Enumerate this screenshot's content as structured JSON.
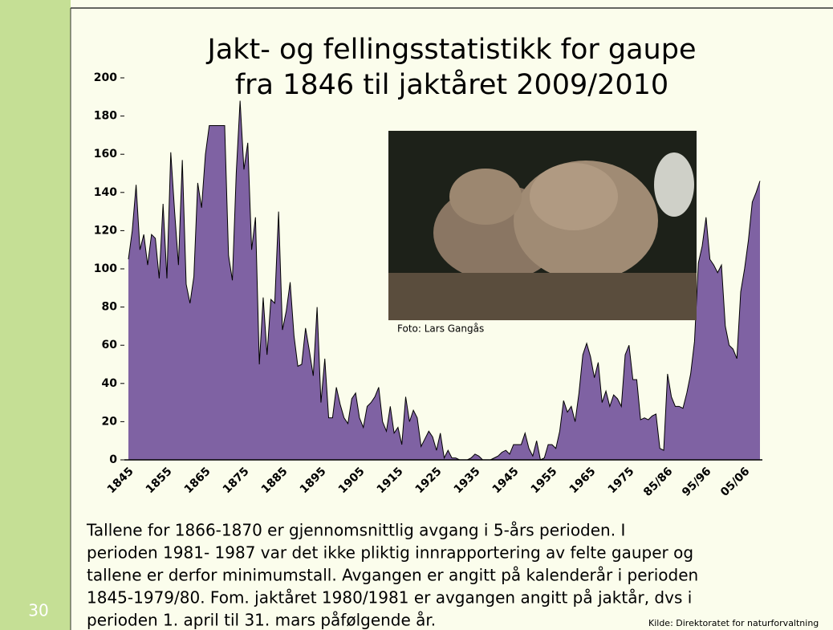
{
  "chart_data": {
    "type": "area",
    "title": [
      "Jakt- og fellingsstatistikk for gaupe",
      "fra 1846 til jaktåret 2009/2010"
    ],
    "categories": [
      "1845",
      null,
      null,
      null,
      null,
      null,
      null,
      null,
      null,
      null,
      "1855",
      null,
      null,
      null,
      null,
      null,
      null,
      null,
      null,
      null,
      "1865",
      null,
      null,
      null,
      null,
      null,
      null,
      null,
      null,
      null,
      "1875",
      null,
      null,
      null,
      null,
      null,
      null,
      null,
      null,
      null,
      "1885",
      null,
      null,
      null,
      null,
      null,
      null,
      null,
      null,
      null,
      "1895",
      null,
      null,
      null,
      null,
      null,
      null,
      null,
      null,
      null,
      "1905",
      null,
      null,
      null,
      null,
      null,
      null,
      null,
      null,
      null,
      "1915",
      null,
      null,
      null,
      null,
      null,
      null,
      null,
      null,
      null,
      "1925",
      null,
      null,
      null,
      null,
      null,
      null,
      null,
      null,
      null,
      "1935",
      null,
      null,
      null,
      null,
      null,
      null,
      null,
      null,
      null,
      "1945",
      null,
      null,
      null,
      null,
      null,
      null,
      null,
      null,
      null,
      "1955",
      null,
      null,
      null,
      null,
      null,
      null,
      null,
      null,
      null,
      "1965",
      null,
      null,
      null,
      null,
      null,
      null,
      null,
      null,
      null,
      "1975",
      null,
      null,
      null,
      null,
      null,
      null,
      null,
      null,
      null,
      "85/86",
      null,
      null,
      null,
      null,
      null,
      null,
      null,
      null,
      null,
      "95/96",
      null,
      null,
      null,
      null,
      null,
      null,
      null,
      null,
      null,
      "05/06",
      null,
      null,
      null,
      null
    ],
    "values": [
      105,
      120,
      144,
      110,
      118,
      102,
      118,
      116,
      95,
      134,
      95,
      161,
      130,
      102,
      157,
      92,
      82,
      96,
      145,
      132,
      160,
      175,
      175,
      175,
      175,
      175,
      107,
      94,
      150,
      188,
      152,
      166,
      110,
      127,
      50,
      85,
      55,
      84,
      82,
      130,
      68,
      78,
      93,
      65,
      49,
      50,
      69,
      57,
      44,
      80,
      30,
      53,
      22,
      22,
      38,
      29,
      22,
      19,
      32,
      35,
      22,
      17,
      28,
      30,
      33,
      38,
      20,
      15,
      28,
      14,
      17,
      8,
      33,
      20,
      26,
      22,
      7,
      11,
      15,
      12,
      5,
      14,
      1,
      5,
      1,
      1,
      0,
      0,
      0,
      1,
      3,
      2,
      0,
      0,
      0,
      1,
      2,
      4,
      5,
      3,
      8,
      8,
      8,
      14,
      6,
      2,
      10,
      0,
      1,
      8,
      8,
      6,
      15,
      31,
      25,
      28,
      20,
      35,
      55,
      61,
      54,
      43,
      51,
      30,
      36,
      28,
      34,
      32,
      28,
      55,
      60,
      42,
      42,
      21,
      22,
      21,
      23,
      24,
      6,
      5,
      45,
      33,
      28,
      28,
      27,
      35,
      45,
      62,
      103,
      112,
      127,
      105,
      102,
      98,
      102,
      70,
      60,
      58,
      53,
      88,
      100,
      115,
      135,
      140,
      146
    ],
    "color": "#7f62a3",
    "ylim": [
      0,
      200
    ],
    "yticks": [
      0,
      20,
      40,
      60,
      80,
      100,
      120,
      140,
      160,
      180,
      200
    ]
  },
  "slide": {
    "number": "30",
    "photo_caption": "Foto: Lars Gangås",
    "notes": [
      "Tallene for  1866-1870 er gjennomsnittlig avgang i 5-års perioden.  I",
      "perioden 1981- 1987 var det ikke pliktig innrapportering av felte gauper og",
      "tallene er derfor minimumstall. Avgangen er angitt på kalenderår i perioden",
      "1845-1979/80. Fom. jaktåret 1980/1981 er avgangen angitt på jaktår, dvs i",
      "perioden 1. april til 31. mars påfølgende år."
    ],
    "source": "Kilde: Direktoratet for naturforvaltning"
  }
}
